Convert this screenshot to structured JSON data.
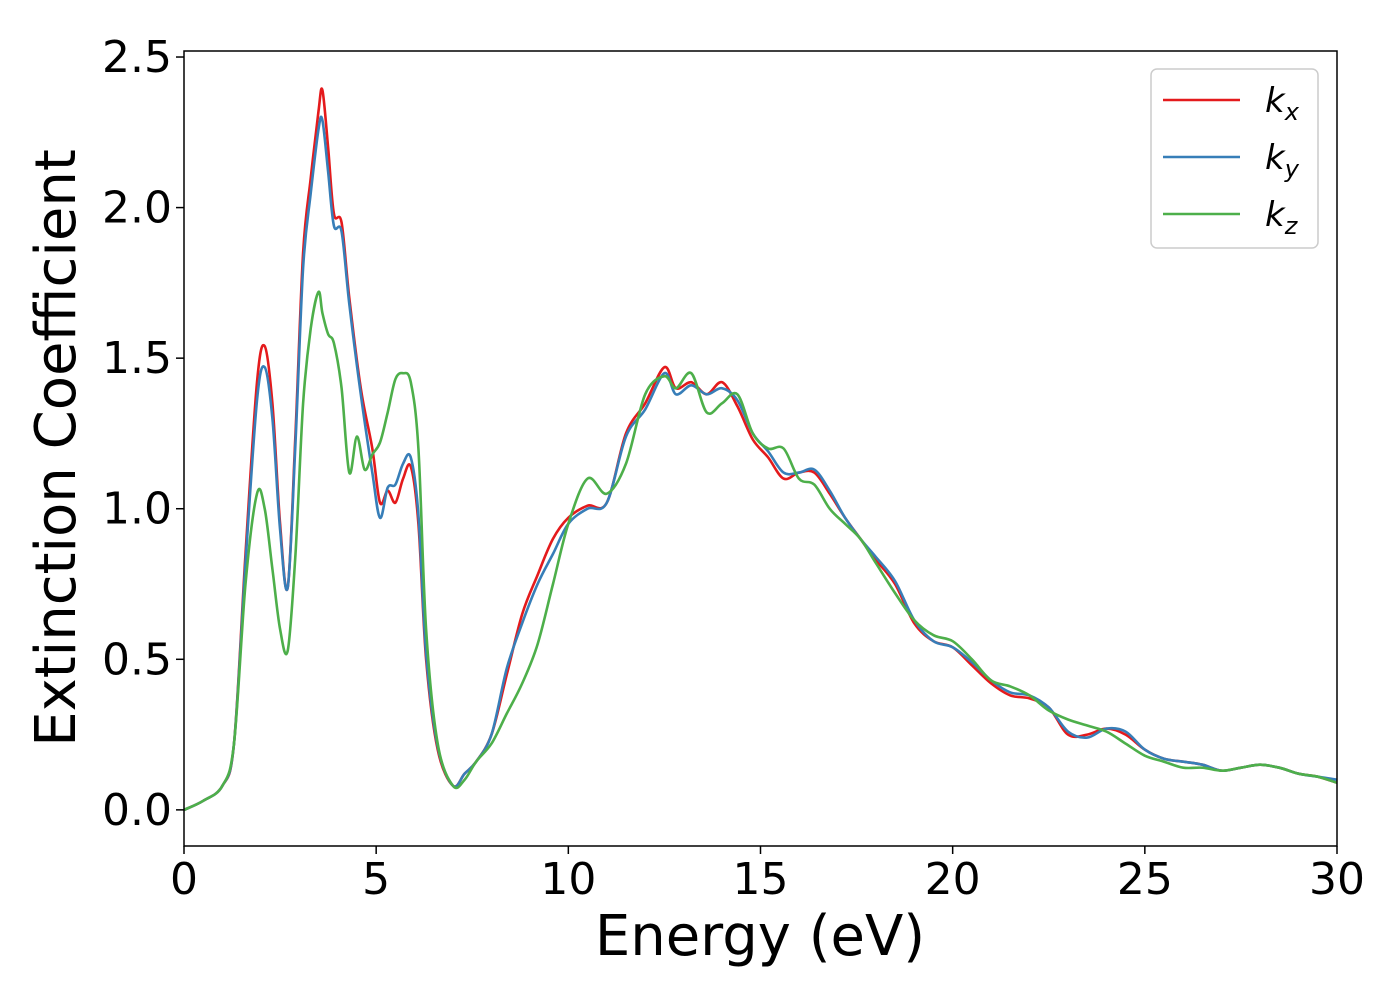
{
  "chart_data": {
    "type": "line",
    "title": "",
    "xlabel": "Energy (eV)",
    "ylabel": "Extinction Coefficient",
    "xlim": [
      0,
      30
    ],
    "ylim": [
      -0.12,
      2.52
    ],
    "xticks": [
      0,
      5,
      10,
      15,
      20,
      25,
      30
    ],
    "xtick_labels": [
      "0",
      "5",
      "10",
      "15",
      "20",
      "25",
      "30"
    ],
    "yticks": [
      0.0,
      0.5,
      1.0,
      1.5,
      2.0,
      2.5
    ],
    "ytick_labels": [
      "0.0",
      "0.5",
      "1.0",
      "1.5",
      "2.0",
      "2.5"
    ],
    "grid": false,
    "legend_position": "top-right",
    "series": [
      {
        "name": "kx",
        "label_base": "k",
        "label_sub": "x",
        "color": "#e41a1c",
        "x": [
          0,
          0.5,
          1.0,
          1.3,
          1.6,
          1.9,
          2.1,
          2.3,
          2.5,
          2.7,
          2.9,
          3.1,
          3.3,
          3.5,
          3.6,
          3.75,
          3.9,
          4.1,
          4.3,
          4.6,
          4.9,
          5.1,
          5.3,
          5.5,
          5.7,
          5.9,
          6.1,
          6.3,
          6.6,
          7.0,
          7.3,
          7.6,
          8.0,
          8.4,
          8.8,
          9.2,
          9.6,
          10.0,
          10.5,
          11.0,
          11.5,
          12.0,
          12.5,
          12.8,
          13.2,
          13.6,
          14.0,
          14.4,
          14.8,
          15.2,
          15.6,
          16.0,
          16.4,
          16.8,
          17.2,
          17.6,
          18.0,
          18.5,
          19.0,
          19.5,
          20.0,
          20.5,
          21.0,
          21.5,
          22.0,
          22.5,
          23.0,
          23.5,
          24.0,
          24.5,
          25.0,
          25.5,
          26.0,
          26.5,
          27.0,
          27.5,
          28.0,
          28.5,
          29.0,
          29.5,
          30.0
        ],
        "y": [
          0,
          0.03,
          0.08,
          0.22,
          0.85,
          1.42,
          1.54,
          1.35,
          0.95,
          0.74,
          1.25,
          1.85,
          2.1,
          2.32,
          2.39,
          2.2,
          1.98,
          1.95,
          1.7,
          1.4,
          1.2,
          1.02,
          1.06,
          1.02,
          1.1,
          1.14,
          0.95,
          0.5,
          0.2,
          0.08,
          0.12,
          0.16,
          0.25,
          0.45,
          0.65,
          0.78,
          0.9,
          0.97,
          1.01,
          1.02,
          1.25,
          1.35,
          1.47,
          1.4,
          1.42,
          1.38,
          1.42,
          1.34,
          1.23,
          1.17,
          1.1,
          1.12,
          1.12,
          1.05,
          0.97,
          0.9,
          0.83,
          0.75,
          0.62,
          0.56,
          0.54,
          0.48,
          0.42,
          0.38,
          0.37,
          0.34,
          0.25,
          0.25,
          0.27,
          0.25,
          0.2,
          0.17,
          0.16,
          0.15,
          0.13,
          0.14,
          0.15,
          0.14,
          0.12,
          0.11,
          0.09
        ]
      },
      {
        "name": "ky",
        "label_base": "k",
        "label_sub": "y",
        "color": "#377eb8",
        "x": [
          0,
          0.5,
          1.0,
          1.3,
          1.6,
          1.9,
          2.1,
          2.3,
          2.5,
          2.7,
          2.9,
          3.1,
          3.3,
          3.5,
          3.6,
          3.75,
          3.9,
          4.1,
          4.3,
          4.6,
          4.9,
          5.1,
          5.3,
          5.5,
          5.7,
          5.9,
          6.1,
          6.3,
          6.6,
          7.0,
          7.3,
          7.6,
          8.0,
          8.4,
          8.8,
          9.2,
          9.6,
          10.0,
          10.5,
          11.0,
          11.5,
          12.0,
          12.5,
          12.8,
          13.2,
          13.6,
          14.0,
          14.4,
          14.8,
          15.2,
          15.6,
          16.0,
          16.4,
          16.8,
          17.2,
          17.6,
          18.0,
          18.5,
          19.0,
          19.5,
          20.0,
          20.5,
          21.0,
          21.5,
          22.0,
          22.5,
          23.0,
          23.5,
          24.0,
          24.5,
          25.0,
          25.5,
          26.0,
          26.5,
          27.0,
          27.5,
          28.0,
          28.5,
          29.0,
          29.5,
          30.0
        ],
        "y": [
          0,
          0.03,
          0.08,
          0.22,
          0.82,
          1.36,
          1.47,
          1.3,
          0.93,
          0.74,
          1.22,
          1.8,
          2.05,
          2.26,
          2.29,
          2.12,
          1.94,
          1.92,
          1.68,
          1.38,
          1.12,
          0.97,
          1.07,
          1.08,
          1.15,
          1.17,
          0.98,
          0.52,
          0.21,
          0.08,
          0.12,
          0.16,
          0.25,
          0.47,
          0.62,
          0.75,
          0.85,
          0.95,
          1.0,
          1.02,
          1.24,
          1.33,
          1.45,
          1.38,
          1.41,
          1.38,
          1.4,
          1.36,
          1.25,
          1.19,
          1.12,
          1.12,
          1.13,
          1.06,
          0.97,
          0.9,
          0.84,
          0.76,
          0.63,
          0.56,
          0.54,
          0.49,
          0.43,
          0.39,
          0.38,
          0.34,
          0.26,
          0.24,
          0.27,
          0.26,
          0.2,
          0.17,
          0.16,
          0.15,
          0.13,
          0.14,
          0.15,
          0.14,
          0.12,
          0.11,
          0.1
        ]
      },
      {
        "name": "kz",
        "label_base": "k",
        "label_sub": "z",
        "color": "#4daf4a",
        "x": [
          0,
          0.5,
          1.0,
          1.3,
          1.6,
          1.9,
          2.1,
          2.3,
          2.5,
          2.7,
          2.9,
          3.1,
          3.3,
          3.5,
          3.6,
          3.75,
          3.9,
          4.1,
          4.3,
          4.5,
          4.7,
          4.9,
          5.1,
          5.3,
          5.5,
          5.7,
          5.9,
          6.1,
          6.3,
          6.6,
          7.0,
          7.3,
          7.6,
          8.0,
          8.4,
          8.8,
          9.2,
          9.6,
          10.0,
          10.5,
          11.0,
          11.5,
          12.0,
          12.5,
          12.8,
          13.2,
          13.6,
          14.0,
          14.4,
          14.8,
          15.2,
          15.6,
          16.0,
          16.4,
          16.8,
          17.2,
          17.6,
          18.0,
          18.5,
          19.0,
          19.5,
          20.0,
          20.5,
          21.0,
          21.5,
          22.0,
          22.5,
          23.0,
          23.5,
          24.0,
          24.5,
          25.0,
          25.5,
          26.0,
          26.5,
          27.0,
          27.5,
          28.0,
          28.5,
          29.0,
          29.5,
          30.0
        ],
        "y": [
          0,
          0.03,
          0.08,
          0.22,
          0.75,
          1.05,
          1.0,
          0.8,
          0.6,
          0.53,
          0.85,
          1.35,
          1.6,
          1.72,
          1.65,
          1.58,
          1.55,
          1.4,
          1.12,
          1.24,
          1.13,
          1.18,
          1.22,
          1.32,
          1.43,
          1.45,
          1.42,
          1.2,
          0.6,
          0.22,
          0.08,
          0.1,
          0.16,
          0.22,
          0.32,
          0.42,
          0.55,
          0.75,
          0.95,
          1.1,
          1.05,
          1.15,
          1.38,
          1.44,
          1.4,
          1.45,
          1.32,
          1.35,
          1.38,
          1.25,
          1.2,
          1.2,
          1.1,
          1.08,
          1.0,
          0.95,
          0.9,
          0.82,
          0.72,
          0.63,
          0.58,
          0.56,
          0.5,
          0.43,
          0.41,
          0.38,
          0.33,
          0.3,
          0.28,
          0.26,
          0.22,
          0.18,
          0.16,
          0.14,
          0.14,
          0.13,
          0.14,
          0.15,
          0.14,
          0.12,
          0.11,
          0.09
        ]
      }
    ]
  }
}
